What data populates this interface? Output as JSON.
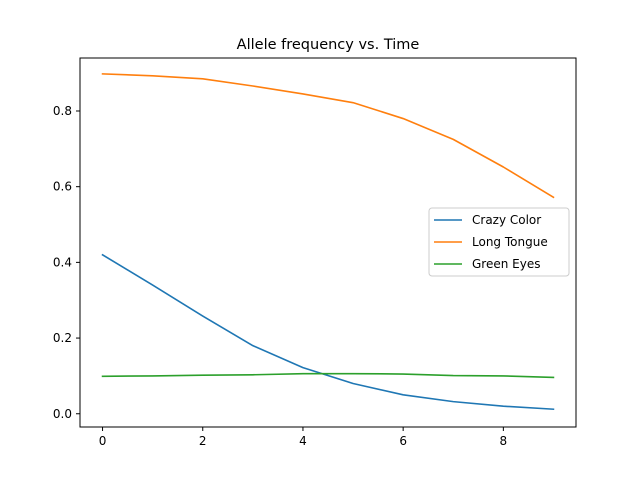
{
  "chart_data": {
    "type": "line",
    "title": "Allele frequency vs. Time",
    "xlabel": "",
    "ylabel": "",
    "xlim": [
      -0.45,
      9.45
    ],
    "ylim": [
      -0.035,
      0.94
    ],
    "xticks": [
      0,
      2,
      4,
      6,
      8
    ],
    "yticks": [
      0.0,
      0.2,
      0.4,
      0.6,
      0.8
    ],
    "grid": false,
    "legend_position": "center-right",
    "x": [
      0,
      1,
      2,
      3,
      4,
      5,
      6,
      7,
      8,
      9
    ],
    "series": [
      {
        "name": "Crazy Color",
        "color": "#1f77b4",
        "values": [
          0.42,
          0.34,
          0.258,
          0.18,
          0.122,
          0.08,
          0.05,
          0.032,
          0.02,
          0.012
        ]
      },
      {
        "name": "Long Tongue",
        "color": "#ff7f0e",
        "values": [
          0.898,
          0.893,
          0.885,
          0.866,
          0.845,
          0.822,
          0.78,
          0.725,
          0.652,
          0.572
        ]
      },
      {
        "name": "Green Eyes",
        "color": "#2ca02c",
        "values": [
          0.099,
          0.1,
          0.102,
          0.103,
          0.106,
          0.106,
          0.105,
          0.101,
          0.1,
          0.096
        ]
      }
    ]
  }
}
